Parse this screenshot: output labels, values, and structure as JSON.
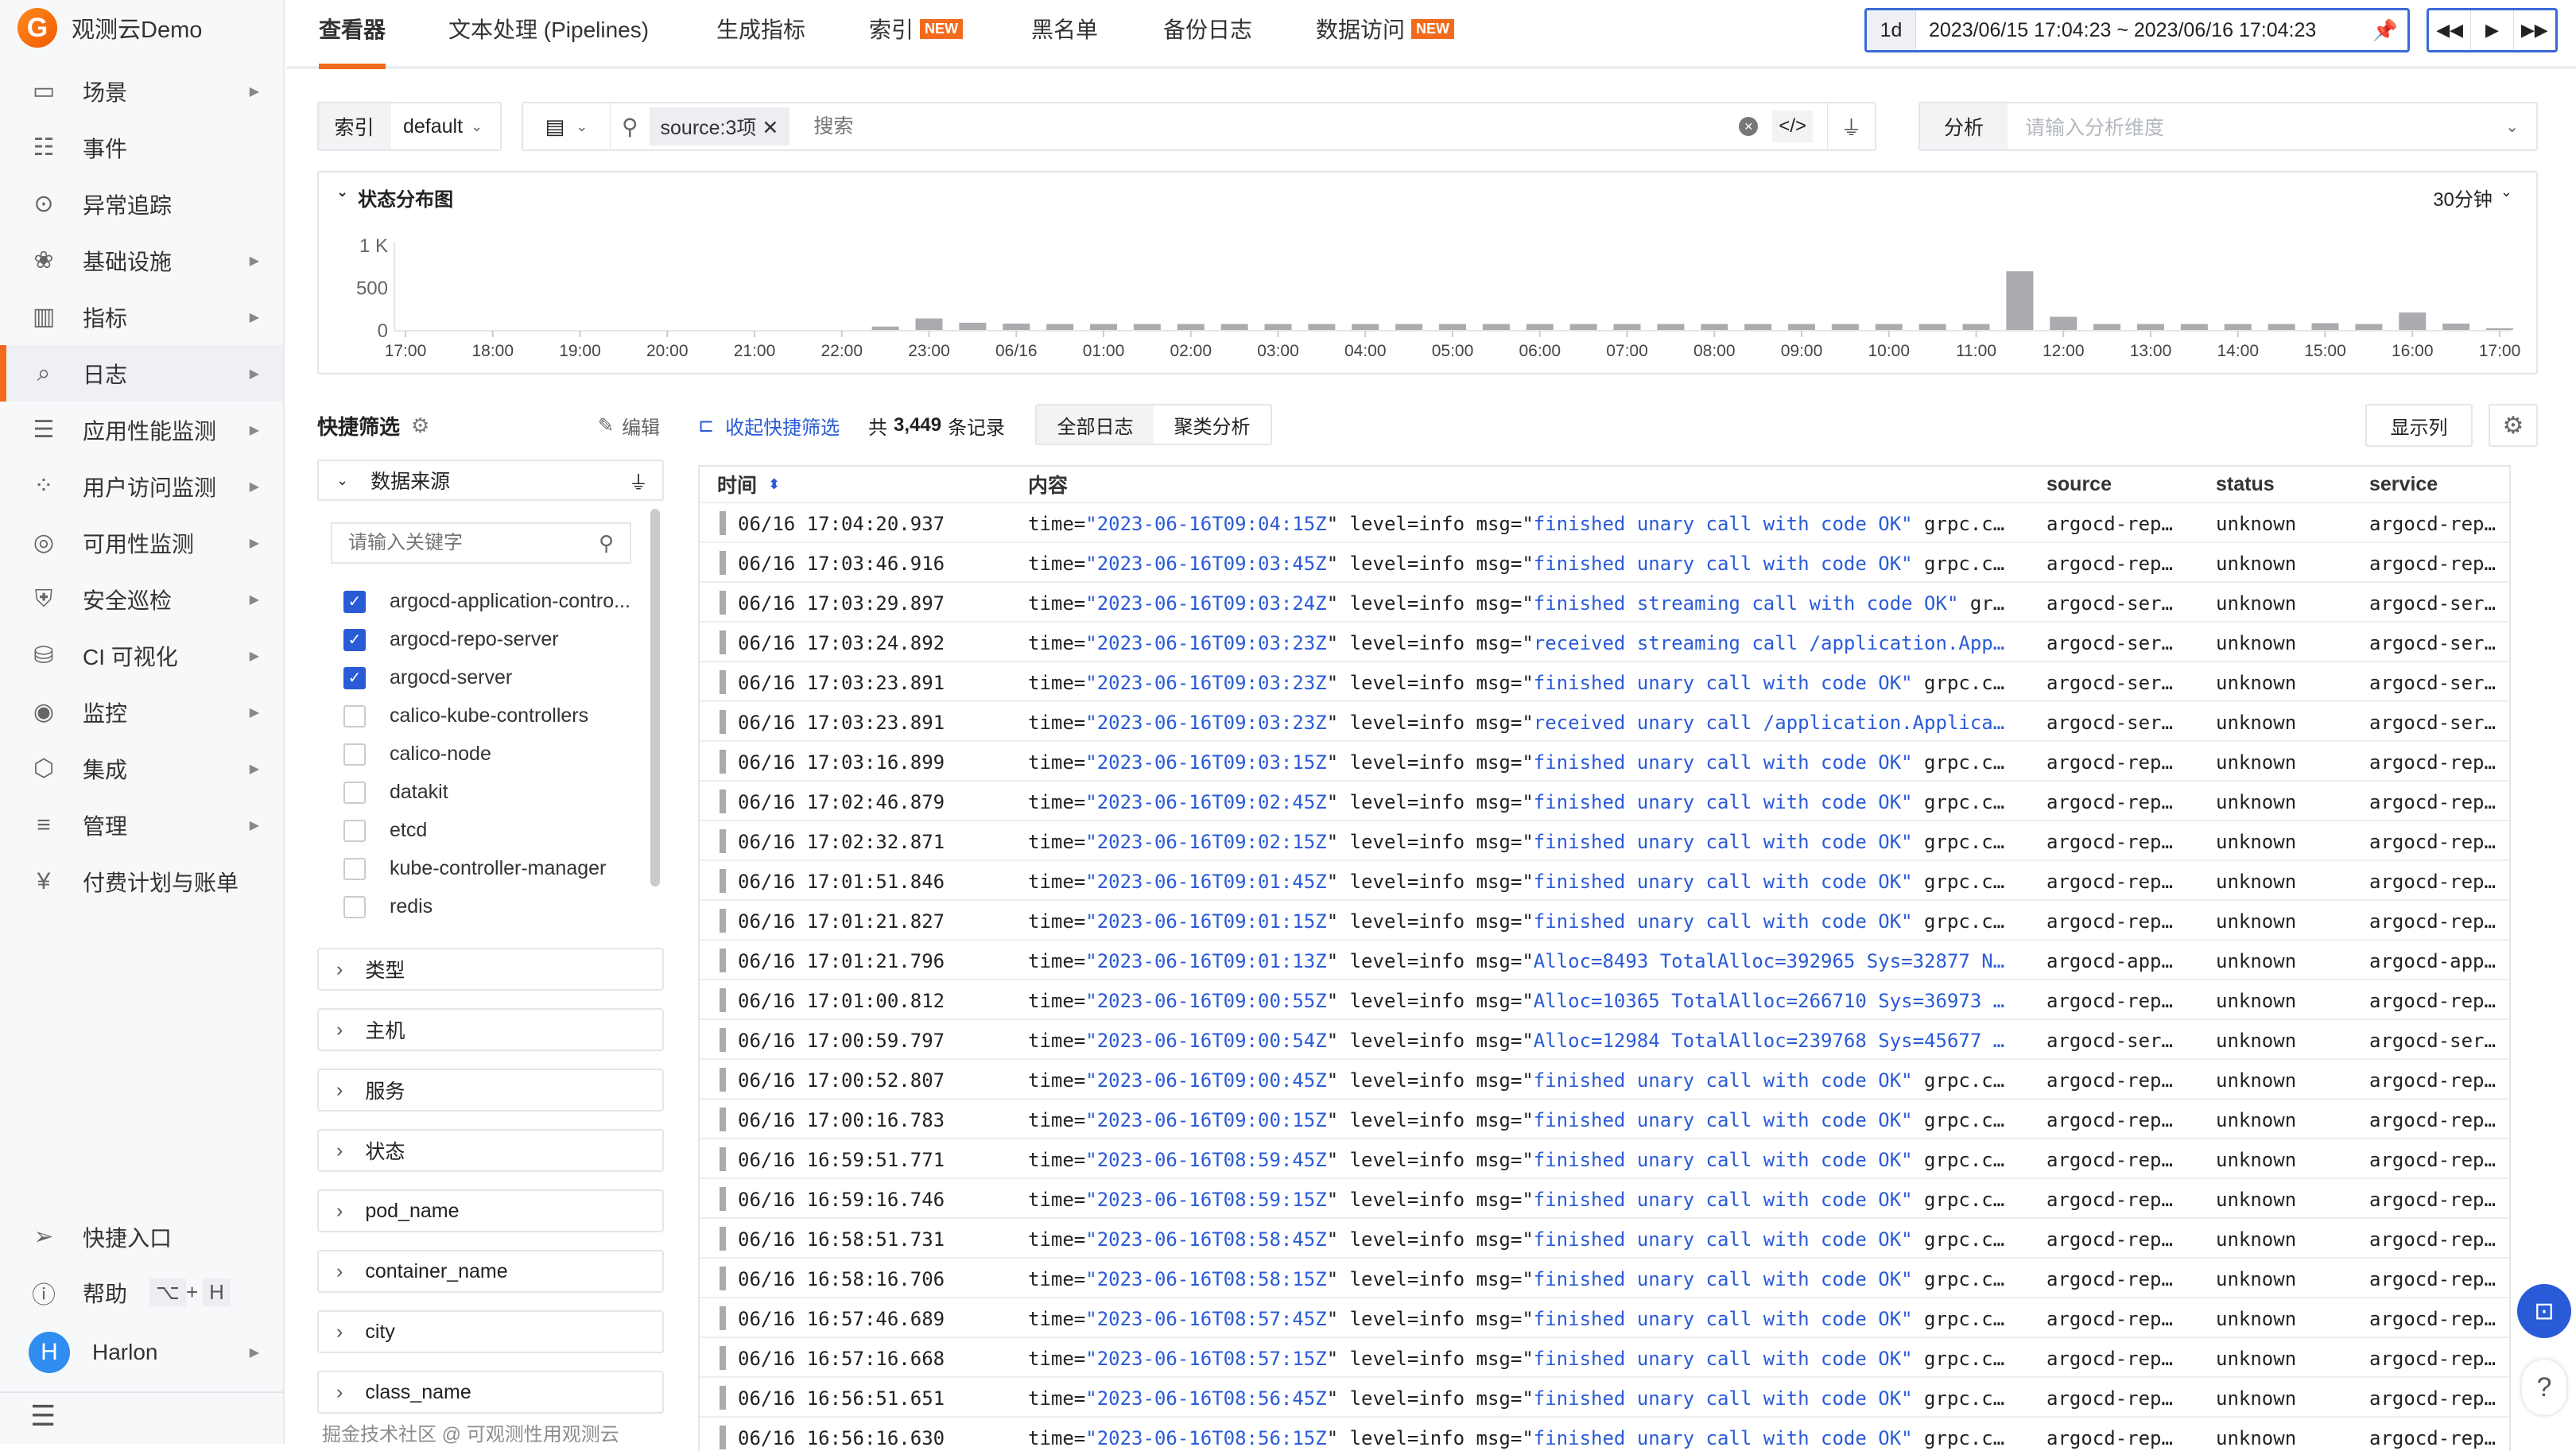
{
  "app": {
    "name": "观测云Demo",
    "logo_letter": "G"
  },
  "sidebar": {
    "items": [
      {
        "label": "场景",
        "icon": "monitor-icon",
        "glyph": "▭",
        "arrow": true
      },
      {
        "label": "事件",
        "icon": "calendar-icon",
        "glyph": "☷",
        "arrow": false
      },
      {
        "label": "异常追踪",
        "icon": "scan-eye-icon",
        "glyph": "⊙",
        "arrow": false
      },
      {
        "label": "基础设施",
        "icon": "cubes-icon",
        "glyph": "❀",
        "arrow": true
      },
      {
        "label": "指标",
        "icon": "bar-chart-icon",
        "glyph": "▥",
        "arrow": true
      },
      {
        "label": "日志",
        "icon": "log-search-icon",
        "glyph": "⌕",
        "arrow": true,
        "active": true
      },
      {
        "label": "应用性能监测",
        "icon": "apm-lines-icon",
        "glyph": "☰",
        "arrow": true
      },
      {
        "label": "用户访问监测",
        "icon": "grid-circles-icon",
        "glyph": "⁘",
        "arrow": true
      },
      {
        "label": "可用性监测",
        "icon": "radar-icon",
        "glyph": "◎",
        "arrow": true
      },
      {
        "label": "安全巡检",
        "icon": "shield-icon",
        "glyph": "⛨",
        "arrow": true
      },
      {
        "label": "CI 可视化",
        "icon": "ci-icon",
        "glyph": "⛁",
        "arrow": true
      },
      {
        "label": "监控",
        "icon": "camera-icon",
        "glyph": "◉",
        "arrow": true
      },
      {
        "label": "集成",
        "icon": "box-icon",
        "glyph": "⬡",
        "arrow": true
      },
      {
        "label": "管理",
        "icon": "sliders-icon",
        "glyph": "≡",
        "arrow": true
      },
      {
        "label": "付费计划与账单",
        "icon": "billing-icon",
        "glyph": "¥",
        "arrow": false
      }
    ],
    "shortcut": "快捷入口",
    "help": "帮助",
    "help_keys": [
      "⌥",
      "H"
    ],
    "help_plus": "+",
    "user": {
      "initial": "H",
      "name": "Harlon"
    }
  },
  "tabs": [
    {
      "label": "查看器",
      "active": true
    },
    {
      "label": "文本处理 (Pipelines)"
    },
    {
      "label": "生成指标"
    },
    {
      "label": "索引",
      "badge": "NEW"
    },
    {
      "label": "黑名单"
    },
    {
      "label": "备份日志"
    },
    {
      "label": "数据访问",
      "badge": "NEW"
    }
  ],
  "time": {
    "quick": "1d",
    "range": "2023/06/15 17:04:23 ~ 2023/06/16 17:04:23"
  },
  "search": {
    "index_label": "索引",
    "index_value": "default",
    "chip": "source:3项",
    "placeholder": "搜索",
    "analysis_label": "分析",
    "analysis_placeholder": "请输入分析维度"
  },
  "chart_panel": {
    "title": "状态分布图",
    "interval": "30分钟"
  },
  "chart_data": {
    "type": "bar",
    "ylim": [
      0,
      1000
    ],
    "yticks": [
      "0",
      "500",
      "1 K"
    ],
    "xticks": [
      "17:00",
      "18:00",
      "19:00",
      "20:00",
      "21:00",
      "22:00",
      "23:00",
      "06/16",
      "01:00",
      "02:00",
      "03:00",
      "04:00",
      "05:00",
      "06:00",
      "07:00",
      "08:00",
      "09:00",
      "10:00",
      "11:00",
      "12:00",
      "13:00",
      "14:00",
      "15:00",
      "16:00",
      "17:00"
    ],
    "x": [
      "06/15 22:30",
      "06/15 23:00",
      "06/15 23:30",
      "06/16 00:00",
      "06/16 00:30",
      "06/16 01:00",
      "06/16 01:30",
      "06/16 02:00",
      "06/16 02:30",
      "06/16 03:00",
      "06/16 03:30",
      "06/16 04:00",
      "06/16 04:30",
      "06/16 05:00",
      "06/16 05:30",
      "06/16 06:00",
      "06/16 06:30",
      "06/16 07:00",
      "06/16 07:30",
      "06/16 08:00",
      "06/16 08:30",
      "06/16 09:00",
      "06/16 09:30",
      "06/16 10:00",
      "06/16 10:30",
      "06/16 11:00",
      "06/16 11:30",
      "06/16 12:00",
      "06/16 12:30",
      "06/16 13:00",
      "06/16 13:30",
      "06/16 14:00",
      "06/16 14:30",
      "06/16 15:00",
      "06/16 15:30",
      "06/16 16:00",
      "06/16 16:30",
      "06/16 17:00"
    ],
    "values": [
      40,
      135,
      85,
      75,
      70,
      70,
      70,
      70,
      70,
      70,
      70,
      70,
      70,
      70,
      70,
      70,
      70,
      70,
      70,
      70,
      70,
      70,
      70,
      70,
      70,
      70,
      690,
      155,
      70,
      70,
      70,
      70,
      70,
      80,
      70,
      205,
      75,
      20
    ],
    "color": "#a9abaf",
    "grid": false
  },
  "quick_filter": {
    "title": "快捷筛选",
    "edit": "编辑",
    "collapse": "收起快捷筛选",
    "count_prefix": "共",
    "count": "3,449",
    "count_suffix": "条记录",
    "view_all": "全部日志",
    "view_cluster": "聚类分析",
    "show_columns": "显示列",
    "source_group": "数据来源",
    "keyword_placeholder": "请输入关键字",
    "sources": [
      {
        "label": "argocd-application-contro...",
        "checked": true
      },
      {
        "label": "argocd-repo-server",
        "checked": true
      },
      {
        "label": "argocd-server",
        "checked": true
      },
      {
        "label": "calico-kube-controllers",
        "checked": false
      },
      {
        "label": "calico-node",
        "checked": false
      },
      {
        "label": "datakit",
        "checked": false
      },
      {
        "label": "etcd",
        "checked": false
      },
      {
        "label": "kube-controller-manager",
        "checked": false
      },
      {
        "label": "redis",
        "checked": false
      }
    ],
    "groups": [
      "类型",
      "主机",
      "服务",
      "状态",
      "pod_name",
      "container_name",
      "city",
      "class_name"
    ]
  },
  "table": {
    "headers": {
      "time": "时间",
      "content": "内容",
      "source": "source",
      "status": "status",
      "service": "service"
    },
    "rows": [
      {
        "t": "06/16 17:04:20.937",
        "ts": "2023-06-16T09:04:15Z",
        "msg": "finished unary call with code OK\"",
        "tail": " grpc.c…",
        "src": "argocd-rep…",
        "st": "unknown",
        "svc": "argocd-rep…"
      },
      {
        "t": "06/16 17:03:46.916",
        "ts": "2023-06-16T09:03:45Z",
        "msg": "finished unary call with code OK\"",
        "tail": " grpc.c…",
        "src": "argocd-rep…",
        "st": "unknown",
        "svc": "argocd-rep…"
      },
      {
        "t": "06/16 17:03:29.897",
        "ts": "2023-06-16T09:03:24Z",
        "msg": "finished streaming call with code OK\"",
        "tail": " gr…",
        "src": "argocd-ser…",
        "st": "unknown",
        "svc": "argocd-ser…"
      },
      {
        "t": "06/16 17:03:24.892",
        "ts": "2023-06-16T09:03:23Z",
        "msg": "received streaming call /application.App…",
        "tail": "",
        "src": "argocd-ser…",
        "st": "unknown",
        "svc": "argocd-ser…"
      },
      {
        "t": "06/16 17:03:23.891",
        "ts": "2023-06-16T09:03:23Z",
        "msg": "finished unary call with code OK\"",
        "tail": " grpc.c…",
        "src": "argocd-ser…",
        "st": "unknown",
        "svc": "argocd-ser…"
      },
      {
        "t": "06/16 17:03:23.891",
        "ts": "2023-06-16T09:03:23Z",
        "msg": "received unary call /application.Applica…",
        "tail": "",
        "src": "argocd-ser…",
        "st": "unknown",
        "svc": "argocd-ser…"
      },
      {
        "t": "06/16 17:03:16.899",
        "ts": "2023-06-16T09:03:15Z",
        "msg": "finished unary call with code OK\"",
        "tail": " grpc.c…",
        "src": "argocd-rep…",
        "st": "unknown",
        "svc": "argocd-rep…"
      },
      {
        "t": "06/16 17:02:46.879",
        "ts": "2023-06-16T09:02:45Z",
        "msg": "finished unary call with code OK\"",
        "tail": " grpc.c…",
        "src": "argocd-rep…",
        "st": "unknown",
        "svc": "argocd-rep…"
      },
      {
        "t": "06/16 17:02:32.871",
        "ts": "2023-06-16T09:02:15Z",
        "msg": "finished unary call with code OK\"",
        "tail": " grpc.c…",
        "src": "argocd-rep…",
        "st": "unknown",
        "svc": "argocd-rep…"
      },
      {
        "t": "06/16 17:01:51.846",
        "ts": "2023-06-16T09:01:45Z",
        "msg": "finished unary call with code OK\"",
        "tail": " grpc.c…",
        "src": "argocd-rep…",
        "st": "unknown",
        "svc": "argocd-rep…"
      },
      {
        "t": "06/16 17:01:21.827",
        "ts": "2023-06-16T09:01:15Z",
        "msg": "finished unary call with code OK\"",
        "tail": " grpc.c…",
        "src": "argocd-rep…",
        "st": "unknown",
        "svc": "argocd-rep…"
      },
      {
        "t": "06/16 17:01:21.796",
        "ts": "2023-06-16T09:01:13Z",
        "msg": "Alloc=8493 TotalAlloc=392965 Sys=32877 N…",
        "tail": "",
        "src": "argocd-app…",
        "st": "unknown",
        "svc": "argocd-app…"
      },
      {
        "t": "06/16 17:01:00.812",
        "ts": "2023-06-16T09:00:55Z",
        "msg": "Alloc=10365 TotalAlloc=266710 Sys=36973 …",
        "tail": "",
        "src": "argocd-rep…",
        "st": "unknown",
        "svc": "argocd-rep…"
      },
      {
        "t": "06/16 17:00:59.797",
        "ts": "2023-06-16T09:00:54Z",
        "msg": "Alloc=12984 TotalAlloc=239768 Sys=45677 …",
        "tail": "",
        "src": "argocd-ser…",
        "st": "unknown",
        "svc": "argocd-ser…"
      },
      {
        "t": "06/16 17:00:52.807",
        "ts": "2023-06-16T09:00:45Z",
        "msg": "finished unary call with code OK\"",
        "tail": " grpc.c…",
        "src": "argocd-rep…",
        "st": "unknown",
        "svc": "argocd-rep…"
      },
      {
        "t": "06/16 17:00:16.783",
        "ts": "2023-06-16T09:00:15Z",
        "msg": "finished unary call with code OK\"",
        "tail": " grpc.c…",
        "src": "argocd-rep…",
        "st": "unknown",
        "svc": "argocd-rep…"
      },
      {
        "t": "06/16 16:59:51.771",
        "ts": "2023-06-16T08:59:45Z",
        "msg": "finished unary call with code OK\"",
        "tail": " grpc.c…",
        "src": "argocd-rep…",
        "st": "unknown",
        "svc": "argocd-rep…"
      },
      {
        "t": "06/16 16:59:16.746",
        "ts": "2023-06-16T08:59:15Z",
        "msg": "finished unary call with code OK\"",
        "tail": " grpc.c…",
        "src": "argocd-rep…",
        "st": "unknown",
        "svc": "argocd-rep…"
      },
      {
        "t": "06/16 16:58:51.731",
        "ts": "2023-06-16T08:58:45Z",
        "msg": "finished unary call with code OK\"",
        "tail": " grpc.c…",
        "src": "argocd-rep…",
        "st": "unknown",
        "svc": "argocd-rep…"
      },
      {
        "t": "06/16 16:58:16.706",
        "ts": "2023-06-16T08:58:15Z",
        "msg": "finished unary call with code OK\"",
        "tail": " grpc.c…",
        "src": "argocd-rep…",
        "st": "unknown",
        "svc": "argocd-rep…"
      },
      {
        "t": "06/16 16:57:46.689",
        "ts": "2023-06-16T08:57:45Z",
        "msg": "finished unary call with code OK\"",
        "tail": " grpc.c…",
        "src": "argocd-rep…",
        "st": "unknown",
        "svc": "argocd-rep…"
      },
      {
        "t": "06/16 16:57:16.668",
        "ts": "2023-06-16T08:57:15Z",
        "msg": "finished unary call with code OK\"",
        "tail": " grpc.c…",
        "src": "argocd-rep…",
        "st": "unknown",
        "svc": "argocd-rep…"
      },
      {
        "t": "06/16 16:56:51.651",
        "ts": "2023-06-16T08:56:45Z",
        "msg": "finished unary call with code OK\"",
        "tail": " grpc.c…",
        "src": "argocd-rep…",
        "st": "unknown",
        "svc": "argocd-rep…"
      },
      {
        "t": "06/16 16:56:16.630",
        "ts": "2023-06-16T08:56:15Z",
        "msg": "finished unary call with code OK\"",
        "tail": " grpc.c…",
        "src": "argocd-rep…",
        "st": "unknown",
        "svc": "argocd-rep…"
      }
    ],
    "content_prefix": "time=",
    "content_mid": " level=info msg=\""
  },
  "watermark": "掘金技术社区 @ 可观测性用观测云",
  "colors": {
    "accent": "#f26b1d",
    "primary": "#2a5bd7",
    "bar": "#a9abaf"
  }
}
